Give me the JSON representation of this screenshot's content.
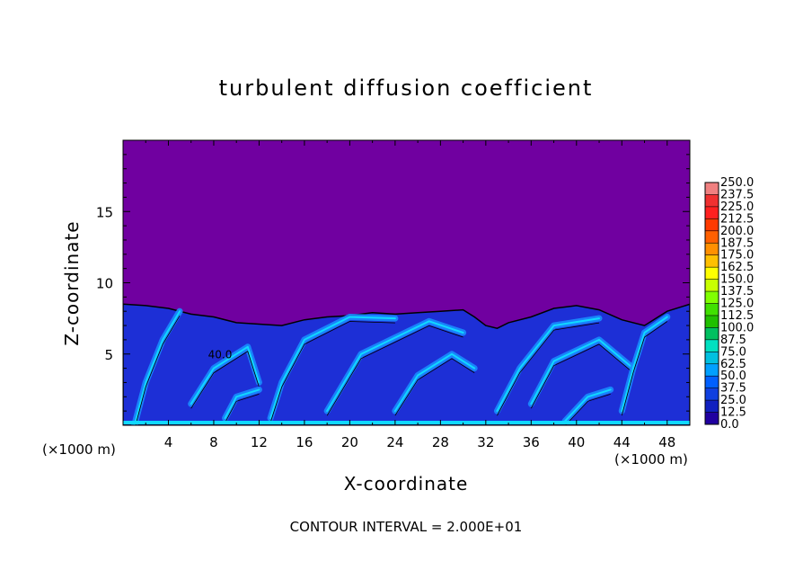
{
  "chart_data": {
    "type": "heatmap",
    "title": "turbulent diffusion coefficient",
    "xlabel": "X-coordinate",
    "ylabel": "Z-coordinate",
    "x_unit_left": "(×1000 m)",
    "x_unit_right": "(×1000 m)",
    "xlim": [
      0,
      50
    ],
    "ylim": [
      0,
      20
    ],
    "x_ticks": [
      4,
      8,
      12,
      16,
      20,
      24,
      28,
      32,
      36,
      40,
      44,
      48
    ],
    "y_ticks": [
      5,
      10,
      15
    ],
    "footer": "CONTOUR INTERVAL = 2.000E+01",
    "contour_label": "40.0",
    "colorbar": {
      "levels": [
        "250.0",
        "237.5",
        "225.0",
        "212.5",
        "200.0",
        "187.5",
        "175.0",
        "162.5",
        "150.0",
        "137.5",
        "125.0",
        "112.5",
        "100.0",
        "87.5",
        "75.0",
        "62.5",
        "50.0",
        "37.5",
        "25.0",
        "12.5",
        "0.0"
      ],
      "colors": [
        "#f08080",
        "#f03030",
        "#ff2020",
        "#ff3a00",
        "#ff6000",
        "#ff9000",
        "#ffc000",
        "#ffff00",
        "#c8ff00",
        "#80ff00",
        "#40e000",
        "#20c000",
        "#00c060",
        "#00e0c0",
        "#00c0e0",
        "#00a0ff",
        "#0060ff",
        "#1040e0",
        "#1020c0",
        "#2000a0",
        "#7000a0"
      ]
    },
    "colors": {
      "background_field": "#7000a0",
      "low_field": "#1d2fd6",
      "mid_field": "#1a8cff",
      "high_field": "#10d8ff",
      "contour_line": "#000000"
    },
    "boundary_layer_top": [
      [
        0,
        8.5
      ],
      [
        2,
        8.4
      ],
      [
        4,
        8.2
      ],
      [
        6,
        7.8
      ],
      [
        8,
        7.6
      ],
      [
        10,
        7.2
      ],
      [
        12,
        7.1
      ],
      [
        14,
        7.0
      ],
      [
        16,
        7.4
      ],
      [
        18,
        7.6
      ],
      [
        20,
        7.7
      ],
      [
        22,
        7.9
      ],
      [
        24,
        7.8
      ],
      [
        26,
        7.9
      ],
      [
        28,
        8.0
      ],
      [
        30,
        8.1
      ],
      [
        31,
        7.6
      ],
      [
        32,
        7.0
      ],
      [
        33,
        6.8
      ],
      [
        34,
        7.2
      ],
      [
        36,
        7.6
      ],
      [
        38,
        8.2
      ],
      [
        40,
        8.4
      ],
      [
        42,
        8.1
      ],
      [
        44,
        7.4
      ],
      [
        46,
        7.0
      ],
      [
        48,
        8.0
      ],
      [
        50,
        8.5
      ]
    ]
  }
}
